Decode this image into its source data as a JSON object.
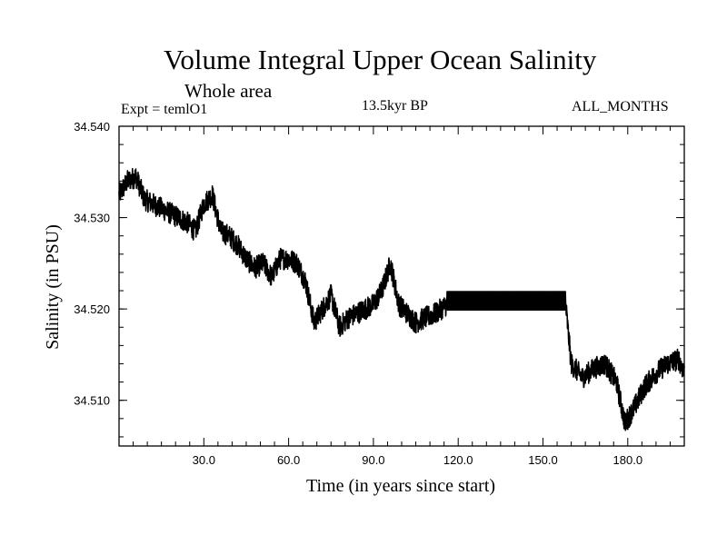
{
  "header": {
    "title": "Volume Integral Upper Ocean Salinity",
    "subtitle": "Whole area",
    "experiment": "Expt = temlO1",
    "period": "13.5kyr BP",
    "months": "ALL_MONTHS"
  },
  "chart_data": {
    "type": "line",
    "title": "Volume Integral Upper Ocean Salinity",
    "subtitle": "Whole area",
    "xlabel": "Time (in years since start)",
    "ylabel": "Salinity (in PSU)",
    "xlim": [
      0,
      200
    ],
    "ylim": [
      34.505,
      34.54
    ],
    "x_ticks": [
      30,
      60,
      90,
      120,
      150,
      180
    ],
    "x_tick_labels": [
      "30.0",
      "60.0",
      "90.0",
      "120.0",
      "150.0",
      "180.0"
    ],
    "y_ticks": [
      34.51,
      34.52,
      34.53,
      34.54
    ],
    "y_tick_labels": [
      "34.510",
      "34.520",
      "34.530",
      "34.540"
    ],
    "grid": false,
    "series": [
      {
        "name": "Salinity",
        "description": "Noisy time series of upper-ocean salinity; regular oscillation band between years ~116 and ~158 followed by a sudden drop",
        "x": [
          0,
          3,
          6,
          9,
          12,
          15,
          18,
          21,
          24,
          27,
          30,
          33,
          36,
          39,
          42,
          45,
          48,
          51,
          54,
          57,
          60,
          63,
          66,
          69,
          72,
          75,
          78,
          81,
          84,
          87,
          90,
          93,
          96,
          99,
          102,
          105,
          108,
          112,
          116,
          158,
          160,
          164,
          168,
          172,
          176,
          179,
          182,
          186,
          190,
          194,
          198,
          200
        ],
        "values": [
          34.5325,
          34.534,
          34.5345,
          34.532,
          34.5315,
          34.531,
          34.5305,
          34.53,
          34.5295,
          34.5285,
          34.5315,
          34.5325,
          34.5285,
          34.528,
          34.527,
          34.5255,
          34.5245,
          34.525,
          34.5235,
          34.5255,
          34.5255,
          34.525,
          34.523,
          34.5185,
          34.52,
          34.5215,
          34.518,
          34.519,
          34.5195,
          34.52,
          34.5205,
          34.522,
          34.525,
          34.5205,
          34.5195,
          34.5185,
          34.519,
          34.5195,
          34.5205,
          34.5205,
          34.514,
          34.5125,
          34.5135,
          34.514,
          34.512,
          34.5075,
          34.509,
          34.5115,
          34.513,
          34.514,
          34.5145,
          34.513
        ],
        "oscillation_band": {
          "x_start": 116,
          "x_end": 158,
          "min": 34.5199,
          "max": 34.5219
        }
      }
    ]
  }
}
